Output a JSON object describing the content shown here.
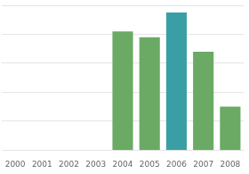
{
  "chart_data": {
    "type": "bar",
    "categories": [
      "2000",
      "2001",
      "2002",
      "2003",
      "2004",
      "2005",
      "2006",
      "2007",
      "2008"
    ],
    "values": [
      0,
      0,
      0,
      0,
      82,
      78,
      95,
      68,
      30
    ],
    "colors": [
      "#6aaa64",
      "#6aaa64",
      "#6aaa64",
      "#6aaa64",
      "#6aaa64",
      "#6aaa64",
      "#3a9fa5",
      "#6aaa64",
      "#6aaa64"
    ],
    "ylim": [
      0,
      100
    ],
    "yticks": [
      20,
      40,
      60,
      80,
      100
    ],
    "grid": true,
    "tick_labels": "x"
  }
}
